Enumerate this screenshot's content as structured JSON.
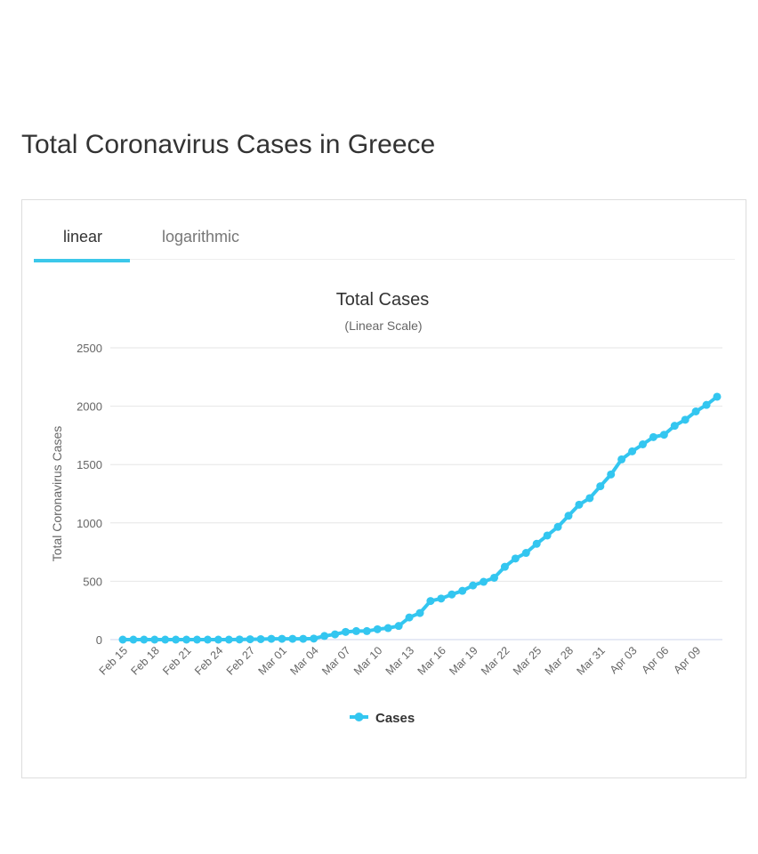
{
  "page_title": "Total Coronavirus Cases in Greece",
  "tabs": [
    {
      "label": "linear",
      "active": true
    },
    {
      "label": "logarithmic",
      "active": false
    }
  ],
  "colors": {
    "accent": "#3cc8ea",
    "series": "#33c6f0"
  },
  "chart_data": {
    "type": "line",
    "title": "Total Cases",
    "subtitle": "(Linear Scale)",
    "ylabel": "Total Coronavirus Cases",
    "xlabel": "",
    "ylim": [
      0,
      2500
    ],
    "yticks": [
      "0",
      "500",
      "1000",
      "1500",
      "2000",
      "2500"
    ],
    "grid": true,
    "legend_position": "bottom",
    "xtick_labels": [
      "Feb 15",
      "Feb 18",
      "Feb 21",
      "Feb 24",
      "Feb 27",
      "Mar 01",
      "Mar 04",
      "Mar 07",
      "Mar 10",
      "Mar 13",
      "Mar 16",
      "Mar 19",
      "Mar 22",
      "Mar 25",
      "Mar 28",
      "Mar 31",
      "Apr 03",
      "Apr 06",
      "Apr 09"
    ],
    "x": [
      "Feb 15",
      "Feb 16",
      "Feb 17",
      "Feb 18",
      "Feb 19",
      "Feb 20",
      "Feb 21",
      "Feb 22",
      "Feb 23",
      "Feb 24",
      "Feb 25",
      "Feb 26",
      "Feb 27",
      "Feb 28",
      "Feb 29",
      "Mar 01",
      "Mar 02",
      "Mar 03",
      "Mar 04",
      "Mar 05",
      "Mar 06",
      "Mar 07",
      "Mar 08",
      "Mar 09",
      "Mar 10",
      "Mar 11",
      "Mar 12",
      "Mar 13",
      "Mar 14",
      "Mar 15",
      "Mar 16",
      "Mar 17",
      "Mar 18",
      "Mar 19",
      "Mar 20",
      "Mar 21",
      "Mar 22",
      "Mar 23",
      "Mar 24",
      "Mar 25",
      "Mar 26",
      "Mar 27",
      "Mar 28",
      "Mar 29",
      "Mar 30",
      "Mar 31",
      "Apr 01",
      "Apr 02",
      "Apr 03",
      "Apr 04",
      "Apr 05",
      "Apr 06",
      "Apr 07",
      "Apr 08",
      "Apr 09",
      "Apr 10",
      "Apr 11"
    ],
    "series": [
      {
        "name": "Cases",
        "values": [
          0,
          0,
          0,
          0,
          0,
          0,
          0,
          0,
          0,
          0,
          0,
          1,
          3,
          4,
          7,
          7,
          7,
          7,
          9,
          31,
          45,
          66,
          73,
          73,
          89,
          99,
          117,
          190,
          228,
          331,
          352,
          387,
          418,
          464,
          495,
          530,
          624,
          695,
          743,
          821,
          892,
          966,
          1061,
          1156,
          1212,
          1314,
          1415,
          1544,
          1613,
          1673,
          1735,
          1755,
          1832,
          1884,
          1955,
          2011,
          2081
        ]
      }
    ]
  }
}
